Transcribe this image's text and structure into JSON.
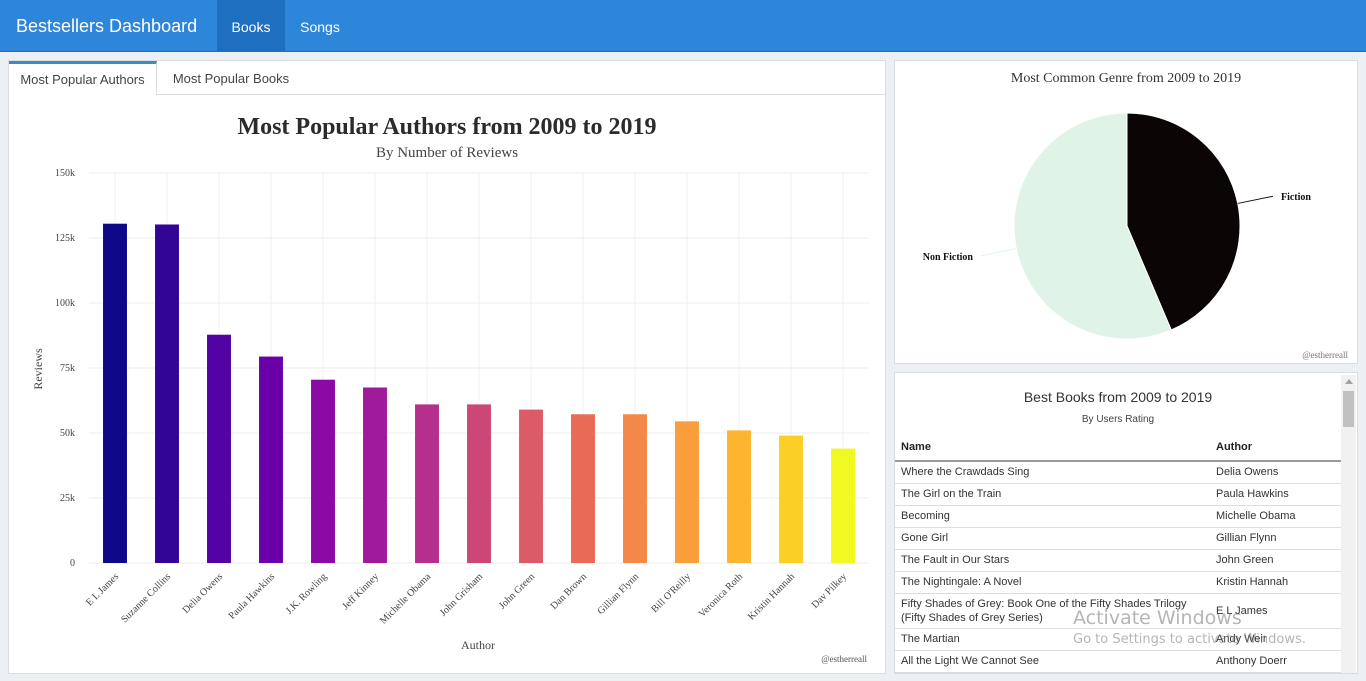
{
  "header": {
    "brand": "Bestsellers Dashboard",
    "tabs": [
      {
        "label": "Books",
        "active": true
      },
      {
        "label": "Songs",
        "active": false
      }
    ]
  },
  "left_panel": {
    "tabs": [
      {
        "label": "Most Popular Authors",
        "active": true
      },
      {
        "label": "Most Popular Books",
        "active": false
      }
    ]
  },
  "chart_data": [
    {
      "type": "bar",
      "title": "Most Popular Authors from 2009 to 2019",
      "subtitle": "By Number of Reviews",
      "xlabel": "Author",
      "ylabel": "Reviews",
      "categories": [
        "E L James",
        "Suzanne Collins",
        "Delia Owens",
        "Paula Hawkins",
        "J.K. Rowling",
        "Jeff Kinney",
        "Michelle Obama",
        "John Grisham",
        "John Green",
        "Dan Brown",
        "Gillian Flynn",
        "Bill O'Reilly",
        "Veronica Roth",
        "Kristin Hannah",
        "Dav Pilkey"
      ],
      "values": [
        130500,
        130200,
        87800,
        79400,
        70500,
        67500,
        61000,
        61000,
        59000,
        57200,
        57200,
        54500,
        51000,
        49000,
        44000
      ],
      "ylim": [
        0,
        150000
      ],
      "yticks": [
        "0",
        "25k",
        "50k",
        "75k",
        "100k",
        "125k",
        "150k"
      ],
      "grid": true,
      "credit": "@estherreall",
      "colors": [
        "#0d0887",
        "#330597",
        "#5302a3",
        "#6a00a8",
        "#8b0aa5",
        "#a01a9c",
        "#b52f8c",
        "#cc4778",
        "#db5c68",
        "#e86a57",
        "#f48849",
        "#fa9e3b",
        "#fdb42f",
        "#fccf25",
        "#f0f921"
      ]
    },
    {
      "type": "pie",
      "title": "Most Common Genre from 2009 to 2019",
      "categories": [
        "Fiction",
        "Non Fiction"
      ],
      "values": [
        43.6,
        56.4
      ],
      "colors": [
        "#0b0505",
        "#dff4e7"
      ],
      "credit": "@estherreall"
    }
  ],
  "best_books": {
    "title": "Best Books from 2009 to 2019",
    "subtitle": "By Users Rating",
    "columns": [
      "Name",
      "Author"
    ],
    "rows": [
      {
        "name": "Where the Crawdads Sing",
        "author": "Delia Owens"
      },
      {
        "name": "The Girl on the Train",
        "author": "Paula Hawkins"
      },
      {
        "name": "Becoming",
        "author": "Michelle Obama"
      },
      {
        "name": "Gone Girl",
        "author": "Gillian Flynn"
      },
      {
        "name": "The Fault in Our Stars",
        "author": "John Green"
      },
      {
        "name": "The Nightingale: A Novel",
        "author": "Kristin Hannah"
      },
      {
        "name": "Fifty Shades of Grey: Book One of the Fifty Shades Trilogy (Fifty Shades of Grey Series)",
        "author": "E L James"
      },
      {
        "name": "The Martian",
        "author": "Andy Weir"
      },
      {
        "name": "All the Light We Cannot See",
        "author": "Anthony Doerr"
      }
    ]
  },
  "watermark": {
    "line1": "Activate Windows",
    "line2": "Go to Settings to activate Windows."
  }
}
